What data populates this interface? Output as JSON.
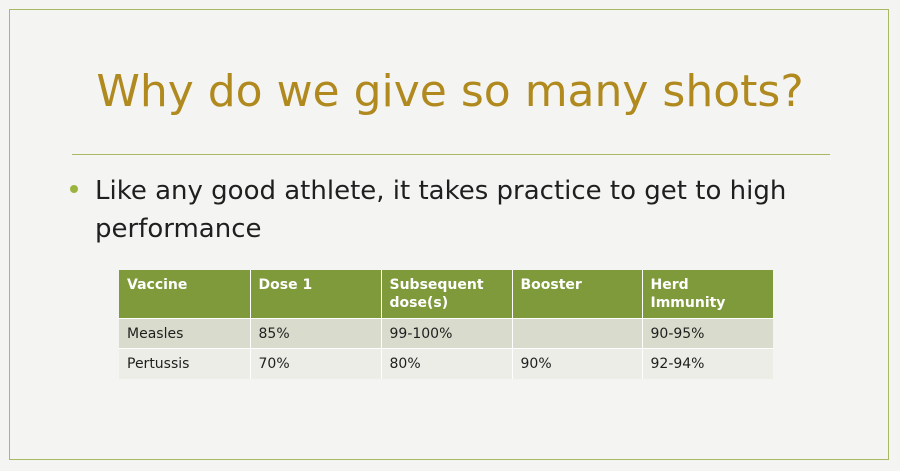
{
  "slide": {
    "title": "Why do we give so many shots?",
    "bullet": "Like any good athlete, it takes practice to get to high performance",
    "colors": {
      "title": "#b08a1f",
      "accent": "#9ab43e",
      "table_header": "#7f9a3a",
      "row_odd": "#d9dccd",
      "row_even": "#ecede6"
    }
  },
  "table": {
    "headers": [
      "Vaccine",
      "Dose 1",
      "Subsequent dose(s)",
      "Booster",
      "Herd Immunity"
    ],
    "rows": [
      [
        "Measles",
        "85%",
        "99-100%",
        "",
        "90-95%"
      ],
      [
        "Pertussis",
        "70%",
        "80%",
        "90%",
        "92-94%"
      ]
    ]
  }
}
